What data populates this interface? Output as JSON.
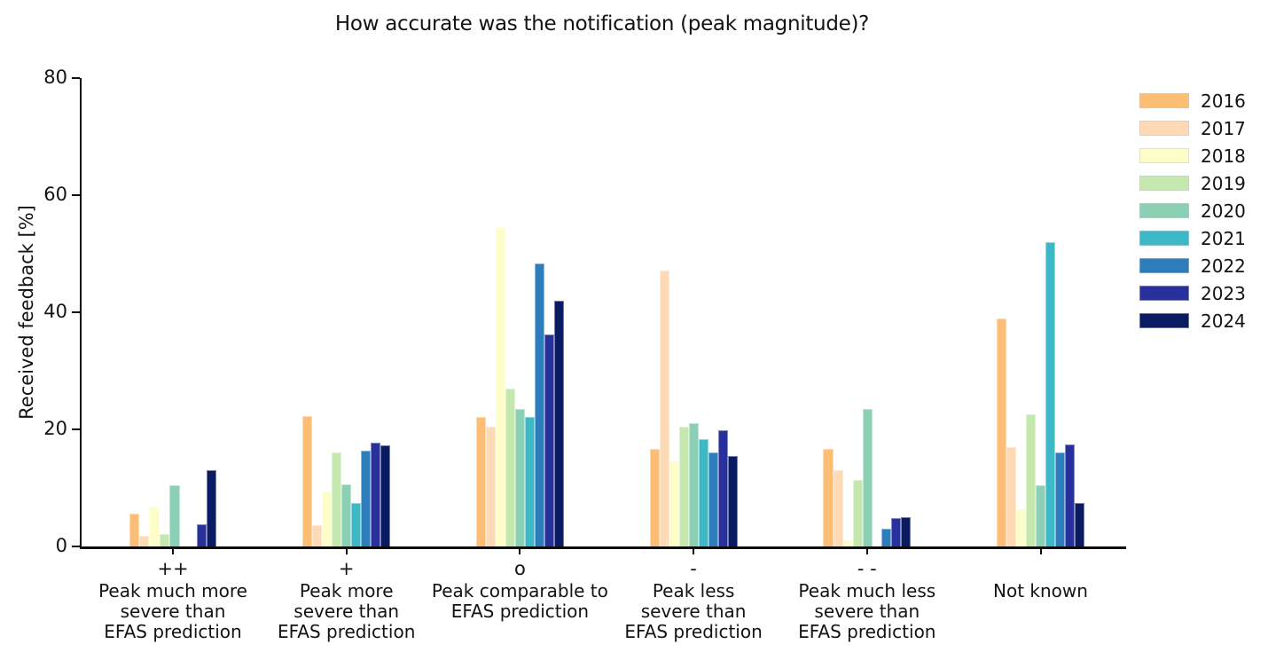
{
  "title": "How accurate was the notification (peak magnitude)?",
  "ylabel": "Received feedback [%]",
  "chart_data": {
    "type": "bar",
    "title": "How accurate was the notification (peak magnitude)?",
    "xlabel": "",
    "ylabel": "Received feedback [%]",
    "ylim": [
      0,
      80
    ],
    "yticks": [
      0,
      20,
      40,
      60,
      80
    ],
    "grid": false,
    "legend_position": "right-outside-top",
    "categories": [
      "++",
      "+",
      "o",
      "-",
      "- -",
      "Not known"
    ],
    "groups": [
      {
        "symbol": "++",
        "lines": [
          "Peak much more",
          "severe than",
          "EFAS prediction"
        ]
      },
      {
        "symbol": "+",
        "lines": [
          "Peak more",
          "severe than",
          "EFAS prediction"
        ]
      },
      {
        "symbol": "o",
        "lines": [
          "Peak comparable to",
          "EFAS prediction"
        ]
      },
      {
        "symbol": "-",
        "lines": [
          "Peak less",
          "severe than",
          "EFAS prediction"
        ]
      },
      {
        "symbol": "- -",
        "lines": [
          "Peak much less",
          "severe than",
          "EFAS prediction"
        ]
      },
      {
        "symbol": "",
        "lines": [
          "Not known"
        ]
      }
    ],
    "series": [
      {
        "name": "2016",
        "color": "#fcbe75",
        "values": [
          5.6,
          22.2,
          22.1,
          16.7,
          16.7,
          38.9
        ]
      },
      {
        "name": "2017",
        "color": "#fdd9b4",
        "values": [
          1.8,
          3.7,
          20.5,
          47.1,
          13.0,
          16.9
        ]
      },
      {
        "name": "2018",
        "color": "#fdfdca",
        "values": [
          6.6,
          9.4,
          54.6,
          14.5,
          1.1,
          6.4
        ]
      },
      {
        "name": "2019",
        "color": "#c5e8af",
        "values": [
          2.1,
          16.0,
          27.0,
          20.4,
          11.4,
          22.6
        ]
      },
      {
        "name": "2020",
        "color": "#8bd0b4",
        "values": [
          10.5,
          10.6,
          23.5,
          21.0,
          23.5,
          10.5
        ]
      },
      {
        "name": "2021",
        "color": "#3db8c6",
        "values": [
          0,
          7.4,
          22.1,
          18.3,
          0,
          51.9
        ]
      },
      {
        "name": "2022",
        "color": "#2d7dbb",
        "values": [
          0,
          16.3,
          48.4,
          16.0,
          3.0,
          16.1
        ]
      },
      {
        "name": "2023",
        "color": "#27309b",
        "values": [
          3.8,
          17.8,
          36.2,
          19.9,
          4.8,
          17.4
        ]
      },
      {
        "name": "2024",
        "color": "#0a1b62",
        "values": [
          13.0,
          17.2,
          41.9,
          15.4,
          5.0,
          7.5
        ]
      }
    ]
  }
}
